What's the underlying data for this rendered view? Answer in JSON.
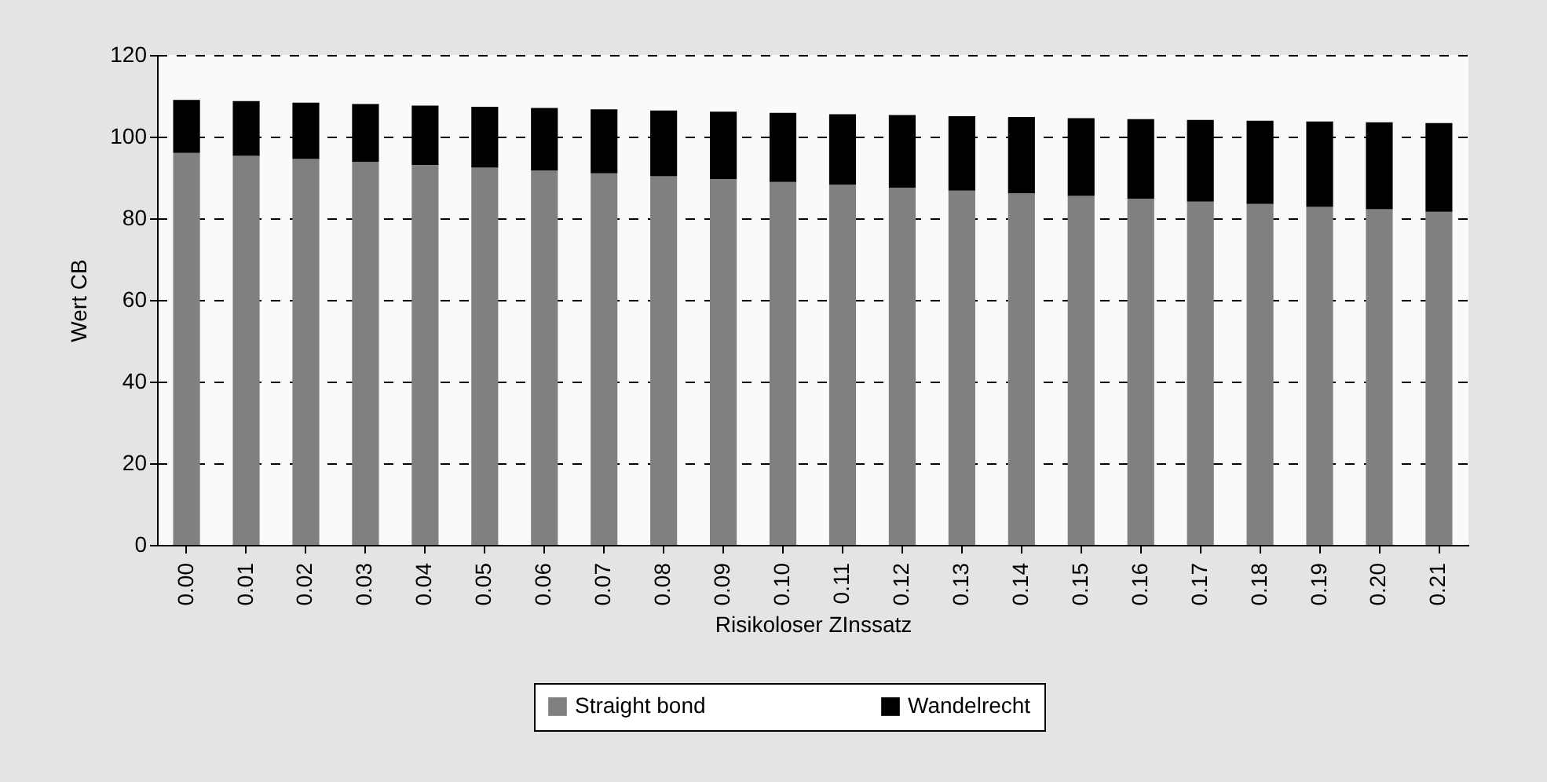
{
  "chart_data": {
    "type": "bar",
    "stacked": true,
    "xlabel": "Risikoloser ZInssatz",
    "ylabel": "Wert CB",
    "categories": [
      "0.00",
      "0.01",
      "0.02",
      "0.03",
      "0.04",
      "0.05",
      "0.06",
      "0.07",
      "0.08",
      "0.09",
      "0.10",
      "0.11",
      "0.12",
      "0.13",
      "0.14",
      "0.15",
      "0.16",
      "0.17",
      "0.18",
      "0.19",
      "0.20",
      "0.21"
    ],
    "series": [
      {
        "name": "Straight bond",
        "color": "#808080",
        "values": [
          96,
          95.3,
          94.5,
          93.8,
          93.1,
          92.4,
          91.7,
          91,
          90.3,
          89.6,
          88.9,
          88.2,
          87.5,
          86.8,
          86.1,
          85.5,
          84.8,
          84.1,
          83.5,
          82.8,
          82.2,
          81.6
        ]
      },
      {
        "name": "Wandelrecht",
        "color": "#000000",
        "values": [
          13,
          13.4,
          13.8,
          14.2,
          14.5,
          14.9,
          15.3,
          15.7,
          16.1,
          16.5,
          16.9,
          17.3,
          17.8,
          18.2,
          18.7,
          19,
          19.5,
          20,
          20.4,
          20.9,
          21.3,
          21.7
        ]
      }
    ],
    "ylim": [
      0,
      120
    ],
    "yticks": [
      0,
      20,
      40,
      60,
      80,
      100,
      120
    ],
    "grid": "y",
    "legend": "bottom"
  }
}
